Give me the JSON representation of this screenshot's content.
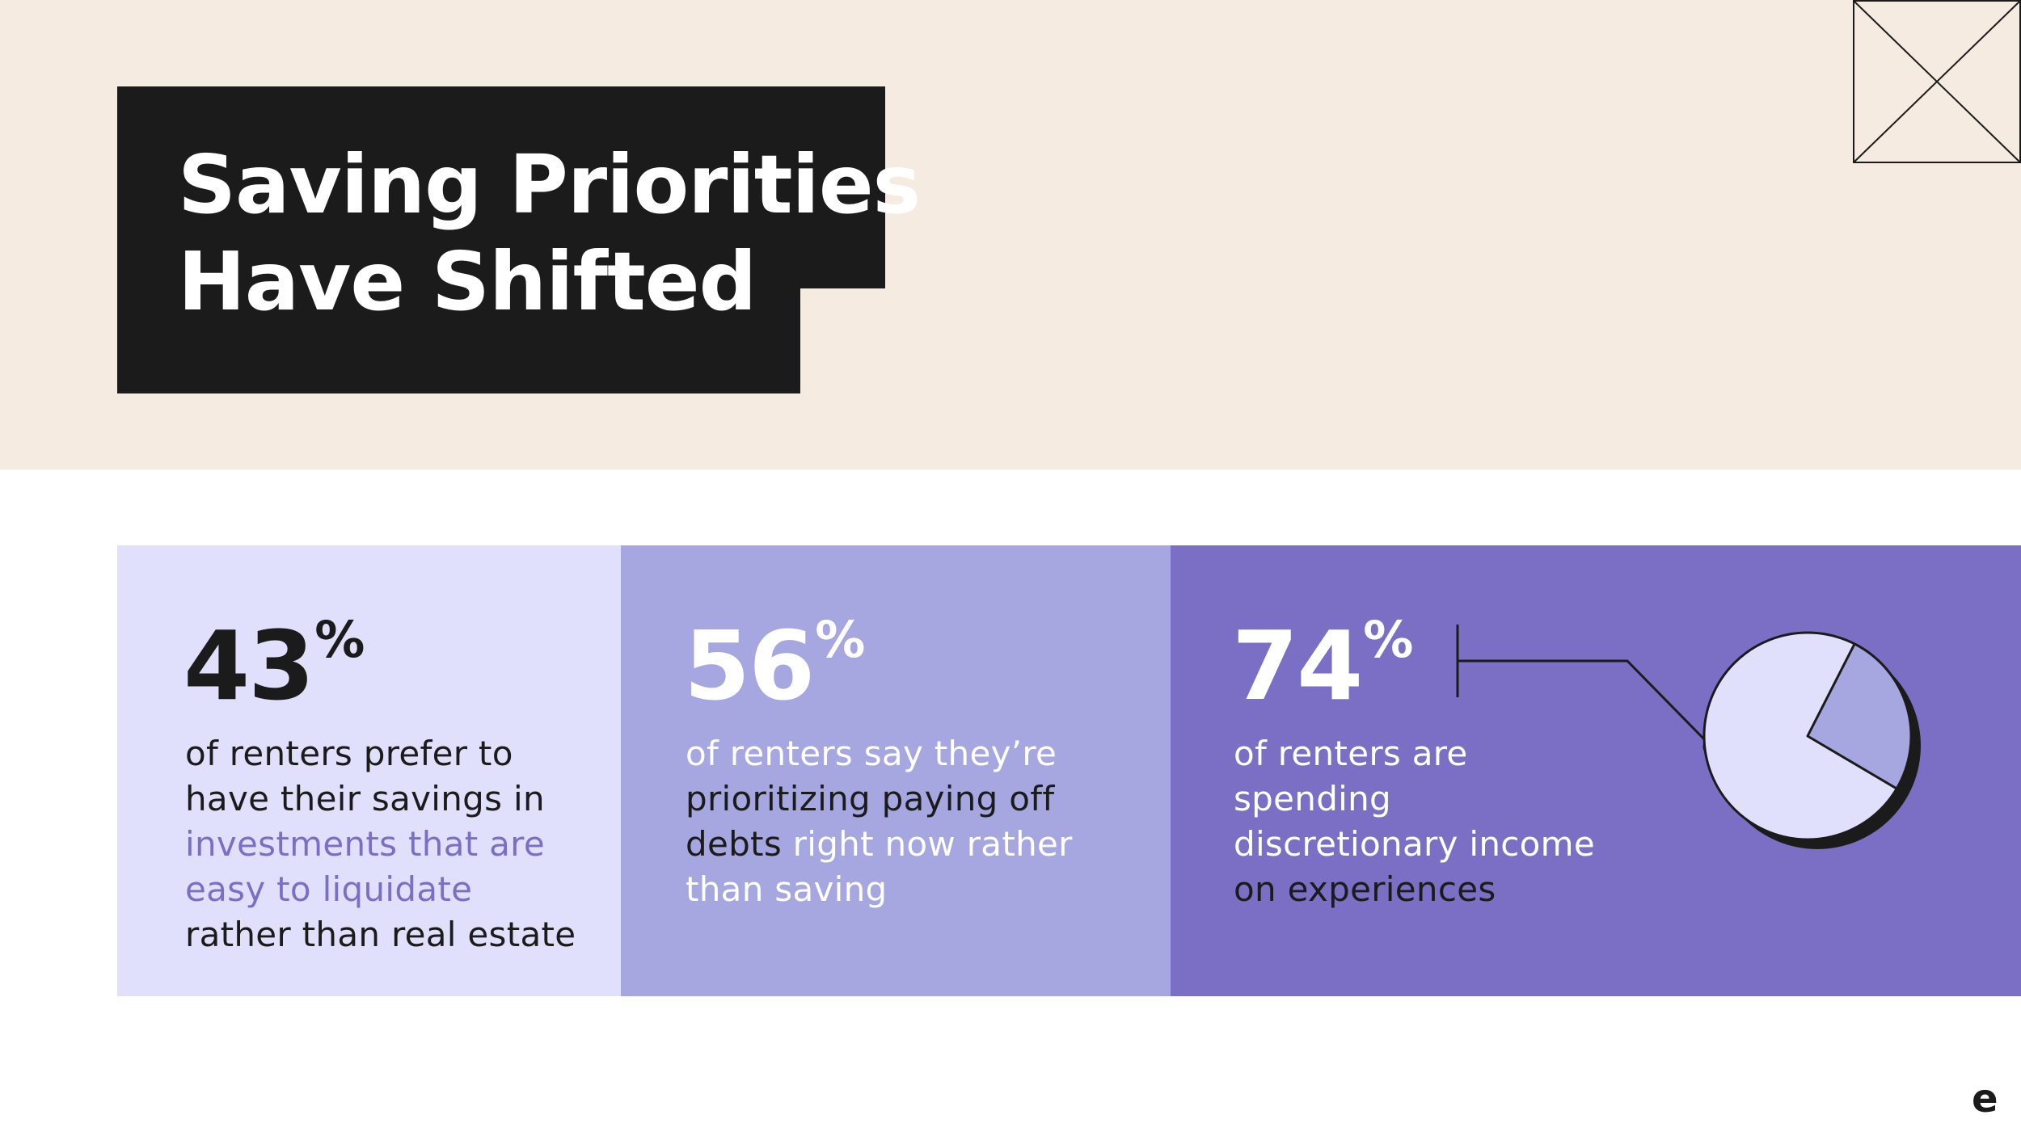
{
  "title": {
    "line1": "Saving Priorities",
    "line2": "Have Shifted"
  },
  "stats": [
    {
      "number": "43",
      "suffix": "%",
      "lines": [
        "of renters prefer to",
        "have their savings in",
        "investments that are",
        "easy to liquidate",
        "rather than real estate"
      ]
    },
    {
      "number": "56",
      "suffix": "%",
      "lines": [
        "of renters say they’re",
        "prioritizing paying off",
        "debts",
        " right now rather",
        "than saving"
      ]
    },
    {
      "number": "74",
      "suffix": "%",
      "lines": [
        "of renters are",
        "spending",
        "discretionary income",
        "on experiences"
      ]
    }
  ],
  "pie": {
    "highlight_share": 0.26,
    "fill_main": "#e0e0fd",
    "fill_slice": "#a6a6e0",
    "shadow": "#1b1b1b"
  },
  "logo": "e",
  "colors": {
    "background_top": "#f6ebe1",
    "title_block": "#1b1b1b",
    "panel_light": "#e0e0fd",
    "panel_mid": "#a6a6e0",
    "panel_dark": "#7b6fc5"
  }
}
